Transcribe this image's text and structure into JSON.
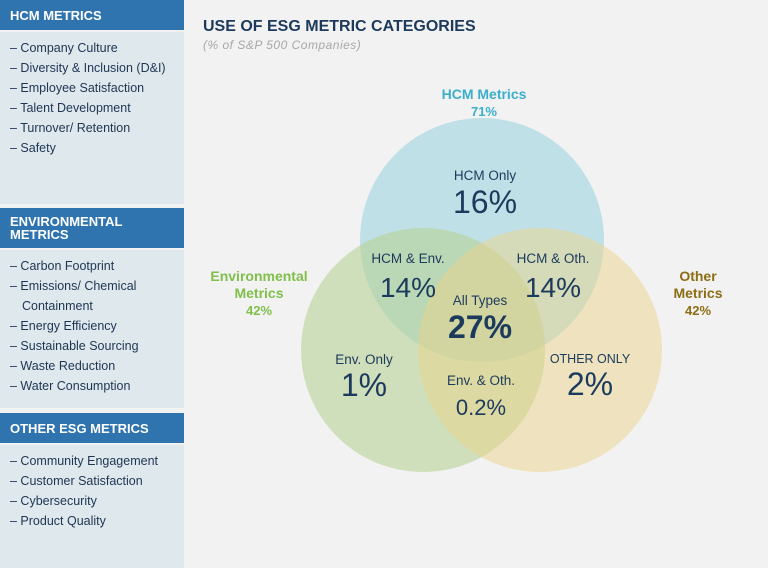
{
  "sidebar": {
    "sections": [
      {
        "title": "HCM METRICS",
        "items": [
          "– Company Culture",
          "– Diversity & Inclusion (D&I)",
          "– Employee Satisfaction",
          "– Talent Development",
          "– Turnover/ Retention",
          "– Safety"
        ]
      },
      {
        "title": "ENVIRONMENTAL METRICS",
        "items": [
          "– Carbon Footprint",
          "– Emissions/ Chemical Containment",
          "– Energy Efficiency",
          "– Sustainable Sourcing",
          "– Waste Reduction",
          "– Water Consumption"
        ]
      },
      {
        "title": "OTHER ESG METRICS",
        "items": [
          "– Community Engagement",
          "– Customer Satisfaction",
          "– Cybersecurity",
          "– Product Quality"
        ]
      }
    ]
  },
  "title": "USE OF ESG METRIC CATEGORIES",
  "subtitle": "(% of S&P 500 Companies)",
  "sets": {
    "hcm": {
      "name": "HCM Metrics",
      "value": "71%",
      "color": "#3aaecb"
    },
    "env": {
      "name": "Environmental Metrics",
      "value": "42%",
      "color": "#7fbf4a"
    },
    "other": {
      "name": "Other Metrics",
      "value": "42%",
      "color": "#8c6d14"
    }
  },
  "regions": {
    "hcm_only": {
      "label": "HCM Only",
      "value": "16%"
    },
    "hcm_env": {
      "label": "HCM & Env.",
      "value": "14%"
    },
    "hcm_oth": {
      "label": "HCM & Oth.",
      "value": "14%"
    },
    "all": {
      "label": "All Types",
      "value": "27%"
    },
    "env_only": {
      "label": "Env. Only",
      "value": "1%"
    },
    "env_oth": {
      "label": "Env. & Oth.",
      "value": "0.2%"
    },
    "other_only": {
      "label": "OTHER ONLY",
      "value": "2%"
    }
  }
}
